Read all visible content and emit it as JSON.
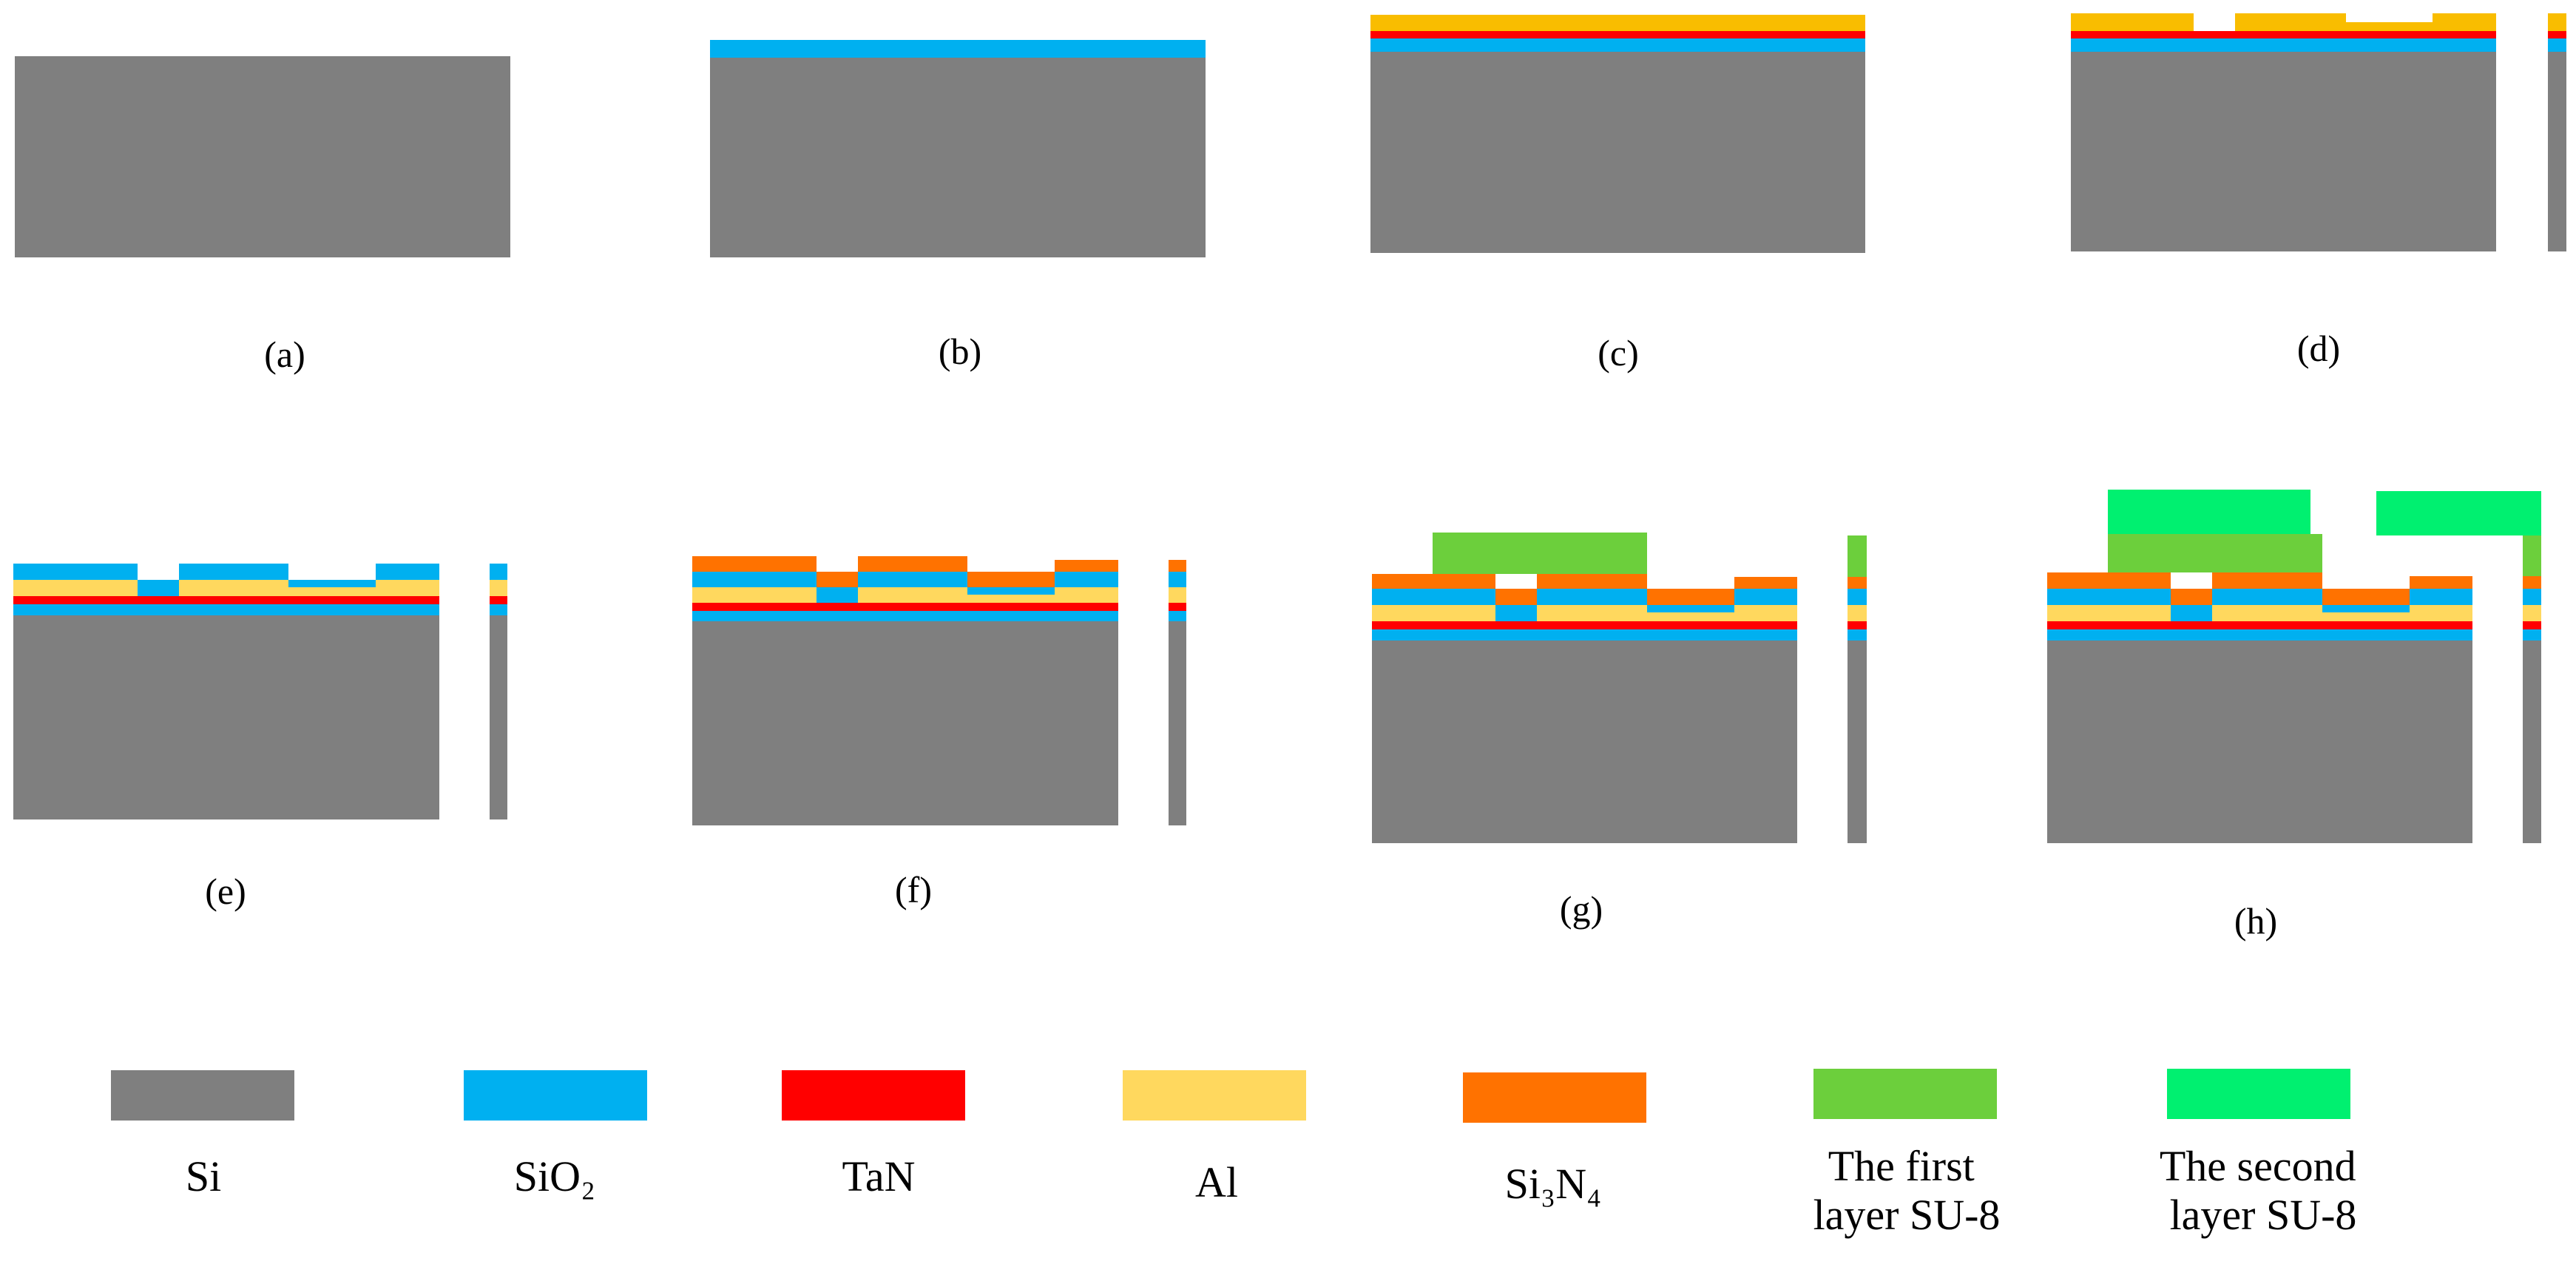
{
  "materials": [
    {
      "key": "si",
      "label": "Si",
      "color": "#7f7f7f"
    },
    {
      "key": "sio2",
      "label": "SiO₂",
      "color": "#00b0f0"
    },
    {
      "key": "tan",
      "label": "TaN",
      "color": "#ff0000"
    },
    {
      "key": "al",
      "label": "Al",
      "color": "#ffd85e"
    },
    {
      "key": "si3n4",
      "label": "Si₃N₄",
      "color": "#ff7200"
    },
    {
      "key": "su8a",
      "label": "The first layer SU-8",
      "lines": [
        "The first",
        "layer SU-8"
      ],
      "color": "#6ccf3c"
    },
    {
      "key": "su8b",
      "label": "The second layer SU-8",
      "lines": [
        "The second",
        "layer SU-8"
      ],
      "color": "#00f070"
    }
  ],
  "al_top_color": "#f9bd00",
  "steps": [
    {
      "id": "a",
      "caption": "(a)"
    },
    {
      "id": "b",
      "caption": "(b)"
    },
    {
      "id": "c",
      "caption": "(c)"
    },
    {
      "id": "d",
      "caption": "(d)"
    },
    {
      "id": "e",
      "caption": "(e)"
    },
    {
      "id": "f",
      "caption": "(f)"
    },
    {
      "id": "g",
      "caption": "(g)"
    },
    {
      "id": "h",
      "caption": "(h)"
    }
  ]
}
